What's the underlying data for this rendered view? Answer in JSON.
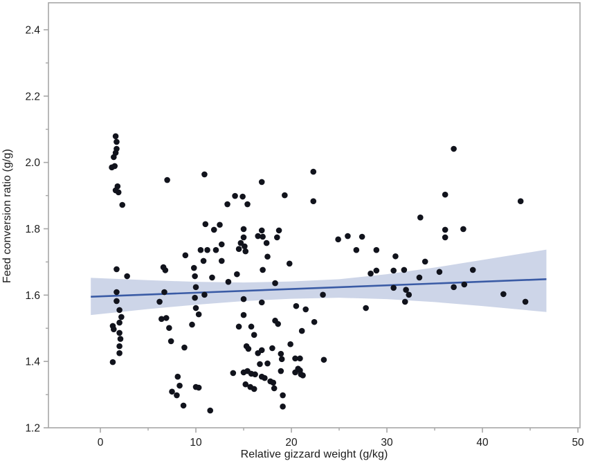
{
  "chart_data": {
    "type": "scatter",
    "title": "",
    "xlabel": "Relative gizzard weight (g/kg)",
    "ylabel": "Feed conversion ratio (g/g)",
    "xlim": [
      -5.4,
      50.2
    ],
    "ylim": [
      1.2,
      2.482
    ],
    "grid": false,
    "legend": "none",
    "x_ticks": [
      {
        "v": 0,
        "label": "0"
      },
      {
        "v": 10,
        "label": "10"
      },
      {
        "v": 20,
        "label": "20"
      },
      {
        "v": 30,
        "label": "30"
      },
      {
        "v": 40,
        "label": "40"
      },
      {
        "v": 50,
        "label": "50"
      }
    ],
    "x_minor_ticks": [
      5,
      15,
      25,
      35,
      45
    ],
    "y_ticks": [
      {
        "v": 2.4,
        "label": "2.4"
      },
      {
        "v": 2.2,
        "label": "2.2"
      },
      {
        "v": 2.0,
        "label": "2.0"
      },
      {
        "v": 1.8,
        "label": "1.8"
      },
      {
        "v": 1.6,
        "label": "1.6"
      },
      {
        "v": 1.4,
        "label": "1.4"
      },
      {
        "v": 1.2,
        "label": "1.2"
      }
    ],
    "y_minor_ticks": [
      2.3,
      2.1,
      1.9,
      1.7,
      1.5,
      1.3
    ],
    "colors": {
      "point": "#11131c",
      "regression_line": "#3a5ba5",
      "confidence_band": "#cdd5e8",
      "axis": "#a6a6a6",
      "text": "#1a1a1a"
    },
    "marker_radius": 4.3,
    "regression": {
      "x": [
        -1.0,
        46.7
      ],
      "y": [
        1.595,
        1.648
      ]
    },
    "confidence_band": {
      "x": [
        -1.0,
        5.0,
        10.0,
        15.0,
        20.0,
        25.0,
        30.0,
        35.0,
        40.0,
        46.7
      ],
      "top": [
        1.652,
        1.645,
        1.64,
        1.638,
        1.641,
        1.648,
        1.663,
        1.683,
        1.706,
        1.737
      ],
      "bottom": [
        1.54,
        1.558,
        1.571,
        1.582,
        1.589,
        1.592,
        1.588,
        1.579,
        1.567,
        1.549
      ]
    },
    "points": [
      [
        1.6,
        2.079
      ],
      [
        1.7,
        2.062
      ],
      [
        1.7,
        2.041
      ],
      [
        1.6,
        2.029
      ],
      [
        1.4,
        2.016
      ],
      [
        1.2,
        1.985
      ],
      [
        1.5,
        1.989
      ],
      [
        1.8,
        1.928
      ],
      [
        1.6,
        1.916
      ],
      [
        1.9,
        1.91
      ],
      [
        2.3,
        1.872
      ],
      [
        1.7,
        1.678
      ],
      [
        2.8,
        1.657
      ],
      [
        1.7,
        1.609
      ],
      [
        1.7,
        1.582
      ],
      [
        2.0,
        1.555
      ],
      [
        2.2,
        1.534
      ],
      [
        2.0,
        1.517
      ],
      [
        1.3,
        1.507
      ],
      [
        1.4,
        1.497
      ],
      [
        2.0,
        1.486
      ],
      [
        2.1,
        1.468
      ],
      [
        2.0,
        1.446
      ],
      [
        2.0,
        1.425
      ],
      [
        1.3,
        1.398
      ],
      [
        7.0,
        1.947
      ],
      [
        10.9,
        1.964
      ],
      [
        6.6,
        1.684
      ],
      [
        6.8,
        1.675
      ],
      [
        8.9,
        1.72
      ],
      [
        9.8,
        1.682
      ],
      [
        6.7,
        1.609
      ],
      [
        6.2,
        1.58
      ],
      [
        6.4,
        1.528
      ],
      [
        6.9,
        1.531
      ],
      [
        7.2,
        1.501
      ],
      [
        7.4,
        1.461
      ],
      [
        8.8,
        1.442
      ],
      [
        8.1,
        1.354
      ],
      [
        8.3,
        1.327
      ],
      [
        10.0,
        1.323
      ],
      [
        10.3,
        1.321
      ],
      [
        7.5,
        1.309
      ],
      [
        8.0,
        1.298
      ],
      [
        8.7,
        1.267
      ],
      [
        11.5,
        1.252
      ],
      [
        12.5,
        1.812
      ],
      [
        11.9,
        1.797
      ],
      [
        11.0,
        1.814
      ],
      [
        13.3,
        1.874
      ],
      [
        14.1,
        1.899
      ],
      [
        14.9,
        1.897
      ],
      [
        15.4,
        1.874
      ],
      [
        16.9,
        1.941
      ],
      [
        19.3,
        1.901
      ],
      [
        22.3,
        1.972
      ],
      [
        22.3,
        1.883
      ],
      [
        10.5,
        1.736
      ],
      [
        11.2,
        1.736
      ],
      [
        12.1,
        1.736
      ],
      [
        10.8,
        1.703
      ],
      [
        9.9,
        1.657
      ],
      [
        11.7,
        1.653
      ],
      [
        10.0,
        1.624
      ],
      [
        10.9,
        1.601
      ],
      [
        9.9,
        1.592
      ],
      [
        10.0,
        1.561
      ],
      [
        10.3,
        1.542
      ],
      [
        9.6,
        1.511
      ],
      [
        15.0,
        1.799
      ],
      [
        16.9,
        1.795
      ],
      [
        18.7,
        1.795
      ],
      [
        15.0,
        1.774
      ],
      [
        16.5,
        1.778
      ],
      [
        17.0,
        1.776
      ],
      [
        18.5,
        1.774
      ],
      [
        12.7,
        1.753
      ],
      [
        14.7,
        1.757
      ],
      [
        15.1,
        1.747
      ],
      [
        14.5,
        1.739
      ],
      [
        15.2,
        1.732
      ],
      [
        17.4,
        1.757
      ],
      [
        17.5,
        1.716
      ],
      [
        12.7,
        1.703
      ],
      [
        19.8,
        1.695
      ],
      [
        17.0,
        1.676
      ],
      [
        14.3,
        1.663
      ],
      [
        13.4,
        1.64
      ],
      [
        18.3,
        1.636
      ],
      [
        15.0,
        1.588
      ],
      [
        16.9,
        1.578
      ],
      [
        23.3,
        1.601
      ],
      [
        20.5,
        1.567
      ],
      [
        21.5,
        1.557
      ],
      [
        15.0,
        1.54
      ],
      [
        18.3,
        1.523
      ],
      [
        18.6,
        1.513
      ],
      [
        14.5,
        1.505
      ],
      [
        15.8,
        1.505
      ],
      [
        22.4,
        1.519
      ],
      [
        21.1,
        1.492
      ],
      [
        16.1,
        1.48
      ],
      [
        15.3,
        1.446
      ],
      [
        15.5,
        1.438
      ],
      [
        16.5,
        1.425
      ],
      [
        16.9,
        1.434
      ],
      [
        18.0,
        1.44
      ],
      [
        19.9,
        1.452
      ],
      [
        18.9,
        1.423
      ],
      [
        19.0,
        1.407
      ],
      [
        20.4,
        1.409
      ],
      [
        20.9,
        1.409
      ],
      [
        16.7,
        1.392
      ],
      [
        17.5,
        1.394
      ],
      [
        23.4,
        1.405
      ],
      [
        18.9,
        1.371
      ],
      [
        13.9,
        1.365
      ],
      [
        15.0,
        1.367
      ],
      [
        15.4,
        1.371
      ],
      [
        15.8,
        1.363
      ],
      [
        16.2,
        1.361
      ],
      [
        16.9,
        1.354
      ],
      [
        17.2,
        1.35
      ],
      [
        20.4,
        1.367
      ],
      [
        21.0,
        1.361
      ],
      [
        20.7,
        1.378
      ],
      [
        17.8,
        1.34
      ],
      [
        18.1,
        1.336
      ],
      [
        15.2,
        1.331
      ],
      [
        15.7,
        1.323
      ],
      [
        16.1,
        1.317
      ],
      [
        18.2,
        1.319
      ],
      [
        19.1,
        1.298
      ],
      [
        19.1,
        1.264
      ],
      [
        20.9,
        1.373
      ],
      [
        21.2,
        1.358
      ],
      [
        24.9,
        1.768
      ],
      [
        25.9,
        1.778
      ],
      [
        27.4,
        1.776
      ],
      [
        26.8,
        1.736
      ],
      [
        28.9,
        1.736
      ],
      [
        30.9,
        1.717
      ],
      [
        34.0,
        1.701
      ],
      [
        28.3,
        1.665
      ],
      [
        28.9,
        1.674
      ],
      [
        30.7,
        1.674
      ],
      [
        31.8,
        1.676
      ],
      [
        33.4,
        1.653
      ],
      [
        35.5,
        1.67
      ],
      [
        39.0,
        1.676
      ],
      [
        30.7,
        1.622
      ],
      [
        32.0,
        1.616
      ],
      [
        32.3,
        1.601
      ],
      [
        37.0,
        1.624
      ],
      [
        38.1,
        1.632
      ],
      [
        31.9,
        1.58
      ],
      [
        42.2,
        1.603
      ],
      [
        44.5,
        1.58
      ],
      [
        27.8,
        1.561
      ],
      [
        33.5,
        1.834
      ],
      [
        36.1,
        1.797
      ],
      [
        36.1,
        1.774
      ],
      [
        38.0,
        1.799
      ],
      [
        37.0,
        2.041
      ],
      [
        36.1,
        1.903
      ],
      [
        44.0,
        1.883
      ]
    ]
  }
}
